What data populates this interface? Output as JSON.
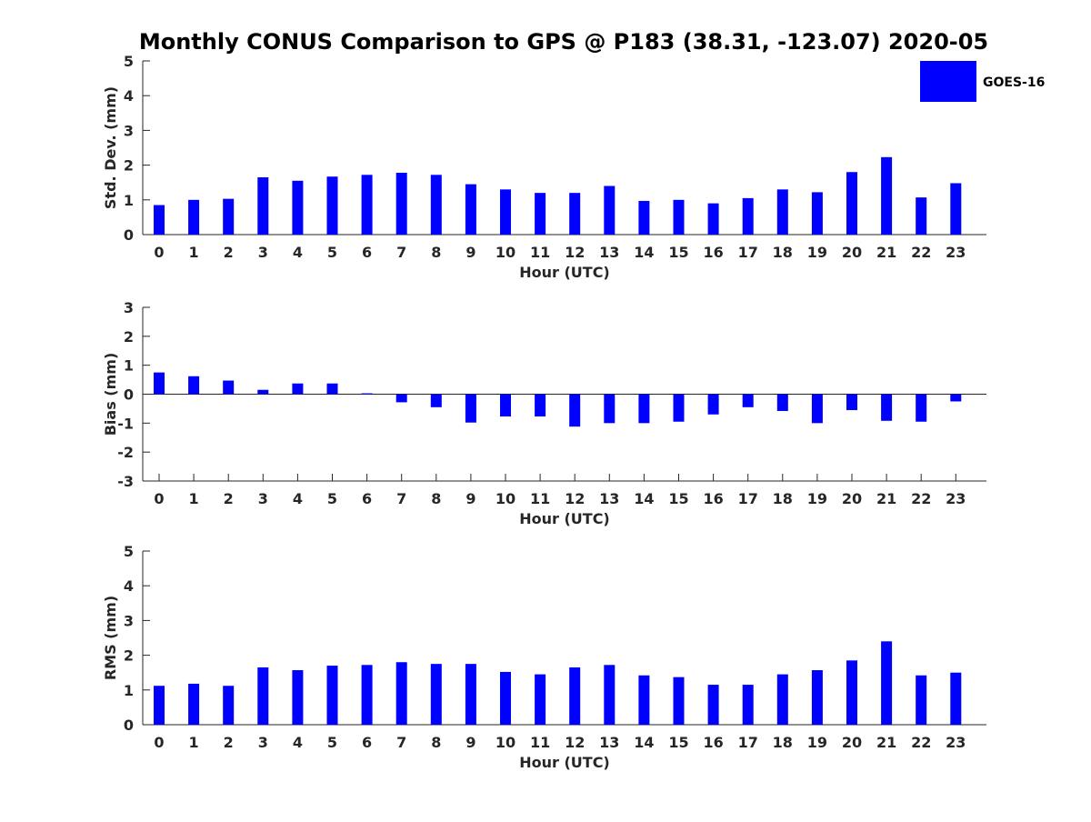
{
  "chart_data": [
    {
      "type": "bar",
      "title": "Monthly CONUS Comparison to GPS @ P183 (38.31, -123.07) 2020-05",
      "xlabel": "Hour (UTC)",
      "ylabel": "Std. Dev. (mm)",
      "ylim": [
        0,
        5
      ],
      "yticks": [
        0,
        1,
        2,
        3,
        4,
        5
      ],
      "categories": [
        "0",
        "1",
        "2",
        "3",
        "4",
        "5",
        "6",
        "7",
        "8",
        "9",
        "10",
        "11",
        "12",
        "13",
        "14",
        "15",
        "16",
        "17",
        "18",
        "19",
        "20",
        "21",
        "22",
        "23"
      ],
      "series": [
        {
          "name": "GOES-16",
          "color": "#0000ff",
          "values": [
            0.85,
            1.0,
            1.03,
            1.65,
            1.55,
            1.67,
            1.72,
            1.78,
            1.72,
            1.45,
            1.3,
            1.2,
            1.2,
            1.4,
            0.97,
            1.0,
            0.9,
            1.05,
            1.3,
            1.22,
            1.8,
            2.23,
            1.07,
            1.48
          ]
        }
      ]
    },
    {
      "type": "bar",
      "xlabel": "Hour (UTC)",
      "ylabel": "Bias (mm)",
      "ylim": [
        -3,
        3
      ],
      "yticks": [
        -3,
        -2,
        -1,
        0,
        1,
        2,
        3
      ],
      "categories": [
        "0",
        "1",
        "2",
        "3",
        "4",
        "5",
        "6",
        "7",
        "8",
        "9",
        "10",
        "11",
        "12",
        "13",
        "14",
        "15",
        "16",
        "17",
        "18",
        "19",
        "20",
        "21",
        "22",
        "23"
      ],
      "series": [
        {
          "name": "GOES-16",
          "color": "#0000ff",
          "values": [
            0.75,
            0.62,
            0.47,
            0.15,
            0.37,
            0.37,
            0.03,
            -0.28,
            -0.45,
            -0.98,
            -0.77,
            -0.77,
            -1.12,
            -1.0,
            -1.0,
            -0.95,
            -0.7,
            -0.45,
            -0.58,
            -1.0,
            -0.55,
            -0.92,
            -0.95,
            -0.25
          ]
        }
      ]
    },
    {
      "type": "bar",
      "xlabel": "Hour (UTC)",
      "ylabel": "RMS (mm)",
      "ylim": [
        0,
        5
      ],
      "yticks": [
        0,
        1,
        2,
        3,
        4,
        5
      ],
      "categories": [
        "0",
        "1",
        "2",
        "3",
        "4",
        "5",
        "6",
        "7",
        "8",
        "9",
        "10",
        "11",
        "12",
        "13",
        "14",
        "15",
        "16",
        "17",
        "18",
        "19",
        "20",
        "21",
        "22",
        "23"
      ],
      "series": [
        {
          "name": "GOES-16",
          "color": "#0000ff",
          "values": [
            1.12,
            1.18,
            1.12,
            1.65,
            1.57,
            1.7,
            1.72,
            1.8,
            1.75,
            1.75,
            1.52,
            1.45,
            1.65,
            1.72,
            1.42,
            1.37,
            1.15,
            1.15,
            1.45,
            1.57,
            1.85,
            2.4,
            1.42,
            1.5
          ]
        }
      ]
    }
  ],
  "legend": {
    "label": "GOES-16",
    "color": "#0000ff",
    "placement": "top-right"
  }
}
